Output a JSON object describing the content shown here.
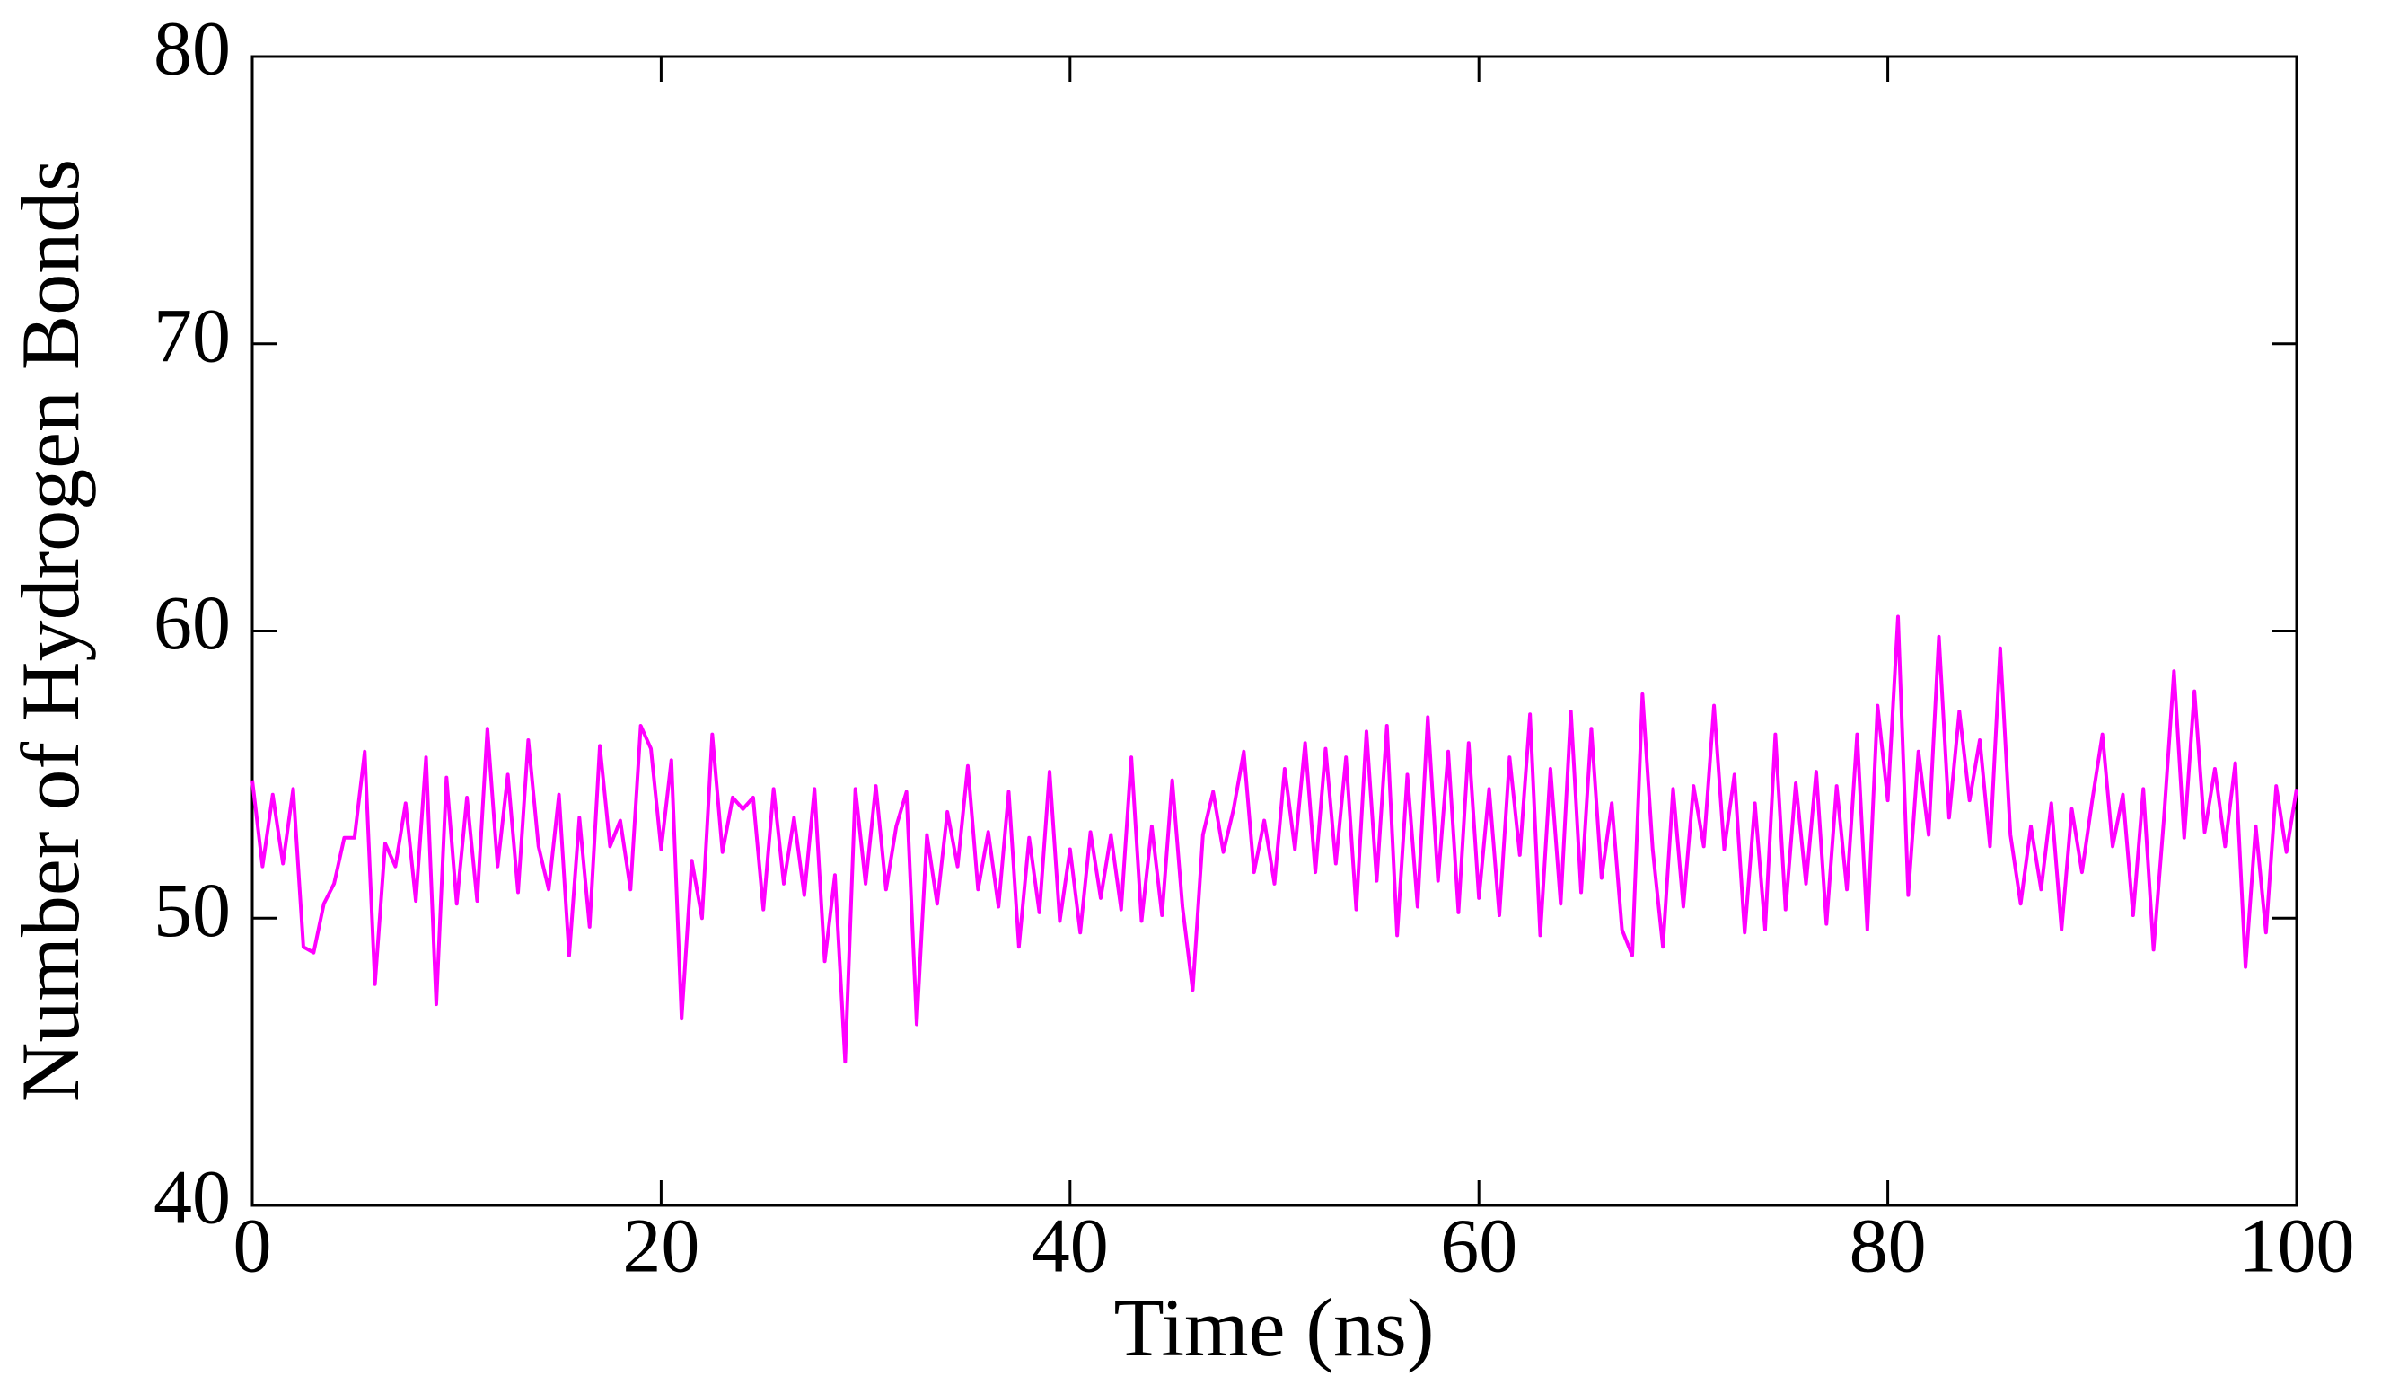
{
  "chart_data": {
    "type": "line",
    "xlabel": "Time (ns)",
    "ylabel": "Number of Hydrogen Bonds",
    "xlim": [
      0,
      100
    ],
    "xticks": [
      0,
      20,
      40,
      60,
      80,
      100
    ],
    "ylim": [
      40,
      80
    ],
    "yticks": [
      40,
      50,
      60,
      70,
      80
    ],
    "grid": false,
    "x": [
      0,
      0.5,
      1,
      1.5,
      2,
      2.5,
      3,
      3.5,
      4,
      4.5,
      5,
      5.5,
      6,
      6.5,
      7,
      7.5,
      8,
      8.5,
      9,
      9.5,
      10,
      10.5,
      11,
      11.5,
      12,
      12.5,
      13,
      13.5,
      14,
      14.5,
      15,
      15.5,
      16,
      16.5,
      17,
      17.5,
      18,
      18.5,
      19,
      19.5,
      20,
      20.5,
      21,
      21.5,
      22,
      22.5,
      23,
      23.5,
      24,
      24.5,
      25,
      25.5,
      26,
      26.5,
      27,
      27.5,
      28,
      28.5,
      29,
      29.5,
      30,
      30.5,
      31,
      31.5,
      32,
      32.5,
      33,
      33.5,
      34,
      34.5,
      35,
      35.5,
      36,
      36.5,
      37,
      37.5,
      38,
      38.5,
      39,
      39.5,
      40,
      40.5,
      41,
      41.5,
      42,
      42.5,
      43,
      43.5,
      44,
      44.5,
      45,
      45.5,
      46,
      46.5,
      47,
      47.5,
      48,
      48.5,
      49,
      49.5,
      50,
      50.5,
      51,
      51.5,
      52,
      52.5,
      53,
      53.5,
      54,
      54.5,
      55,
      55.5,
      56,
      56.5,
      57,
      57.5,
      58,
      58.5,
      59,
      59.5,
      60,
      60.5,
      61,
      61.5,
      62,
      62.5,
      63,
      63.5,
      64,
      64.5,
      65,
      65.5,
      66,
      66.5,
      67,
      67.5,
      68,
      68.5,
      69,
      69.5,
      70,
      70.5,
      71,
      71.5,
      72,
      72.5,
      73,
      73.5,
      74,
      74.5,
      75,
      75.5,
      76,
      76.5,
      77,
      77.5,
      78,
      78.5,
      79,
      79.5,
      80,
      80.5,
      81,
      81.5,
      82,
      82.5,
      83,
      83.5,
      84,
      84.5,
      85,
      85.5,
      86,
      86.5,
      87,
      87.5,
      88,
      88.5,
      89,
      89.5,
      90,
      90.5,
      91,
      91.5,
      92,
      92.5,
      93,
      93.5,
      94,
      94.5,
      95,
      95.5,
      96,
      96.5,
      97,
      97.5,
      98,
      98.5,
      99,
      99.5,
      100
    ],
    "series": [
      {
        "color": "#ff00ff",
        "values": [
          54.8,
          51.8,
          54.3,
          51.9,
          54.5,
          49.0,
          48.8,
          50.5,
          51.2,
          52.8,
          52.8,
          55.8,
          47.7,
          52.6,
          51.8,
          54.0,
          50.6,
          55.6,
          47.0,
          54.9,
          50.5,
          54.2,
          50.6,
          56.6,
          51.8,
          55.0,
          50.9,
          56.2,
          52.5,
          51.0,
          54.3,
          48.7,
          53.5,
          49.7,
          56.0,
          52.5,
          53.4,
          51.0,
          56.7,
          55.9,
          52.4,
          55.5,
          46.5,
          52.0,
          50.0,
          56.4,
          52.3,
          54.2,
          53.8,
          54.2,
          50.3,
          54.5,
          51.2,
          53.5,
          50.8,
          54.5,
          48.5,
          51.5,
          45.0,
          54.5,
          51.2,
          54.6,
          51.0,
          53.2,
          54.4,
          46.3,
          52.9,
          50.5,
          53.7,
          51.8,
          55.3,
          51.0,
          53.0,
          50.4,
          54.4,
          49.0,
          52.8,
          50.2,
          55.1,
          49.9,
          52.4,
          49.5,
          53.0,
          50.7,
          52.9,
          50.3,
          55.6,
          49.9,
          53.2,
          50.1,
          54.8,
          50.4,
          47.5,
          52.9,
          54.4,
          52.3,
          53.8,
          55.8,
          51.6,
          53.4,
          51.2,
          55.2,
          52.4,
          56.1,
          51.6,
          55.9,
          51.9,
          55.6,
          50.3,
          56.5,
          51.3,
          56.7,
          49.4,
          55.0,
          50.4,
          57.0,
          51.3,
          55.8,
          50.2,
          56.1,
          50.7,
          54.5,
          50.1,
          55.6,
          52.2,
          57.1,
          49.4,
          55.2,
          50.5,
          57.2,
          50.9,
          56.6,
          51.4,
          54.0,
          49.6,
          48.7,
          57.8,
          52.4,
          49.0,
          54.5,
          50.4,
          54.6,
          52.5,
          57.4,
          52.4,
          55.0,
          49.5,
          54.0,
          49.6,
          56.4,
          50.3,
          54.7,
          51.2,
          55.1,
          49.8,
          54.6,
          51.0,
          56.4,
          49.6,
          57.4,
          54.1,
          60.5,
          50.8,
          55.8,
          52.9,
          59.8,
          53.5,
          57.2,
          54.1,
          56.2,
          52.5,
          59.4,
          52.9,
          50.5,
          53.2,
          51.0,
          54.0,
          49.6,
          53.8,
          51.6,
          54.1,
          56.4,
          52.5,
          54.3,
          50.1,
          54.5,
          48.9,
          53.4,
          58.6,
          52.8,
          57.9,
          53.0,
          55.2,
          52.5,
          55.4,
          48.3,
          53.2,
          49.5,
          54.6,
          52.3,
          54.5
        ]
      }
    ]
  }
}
